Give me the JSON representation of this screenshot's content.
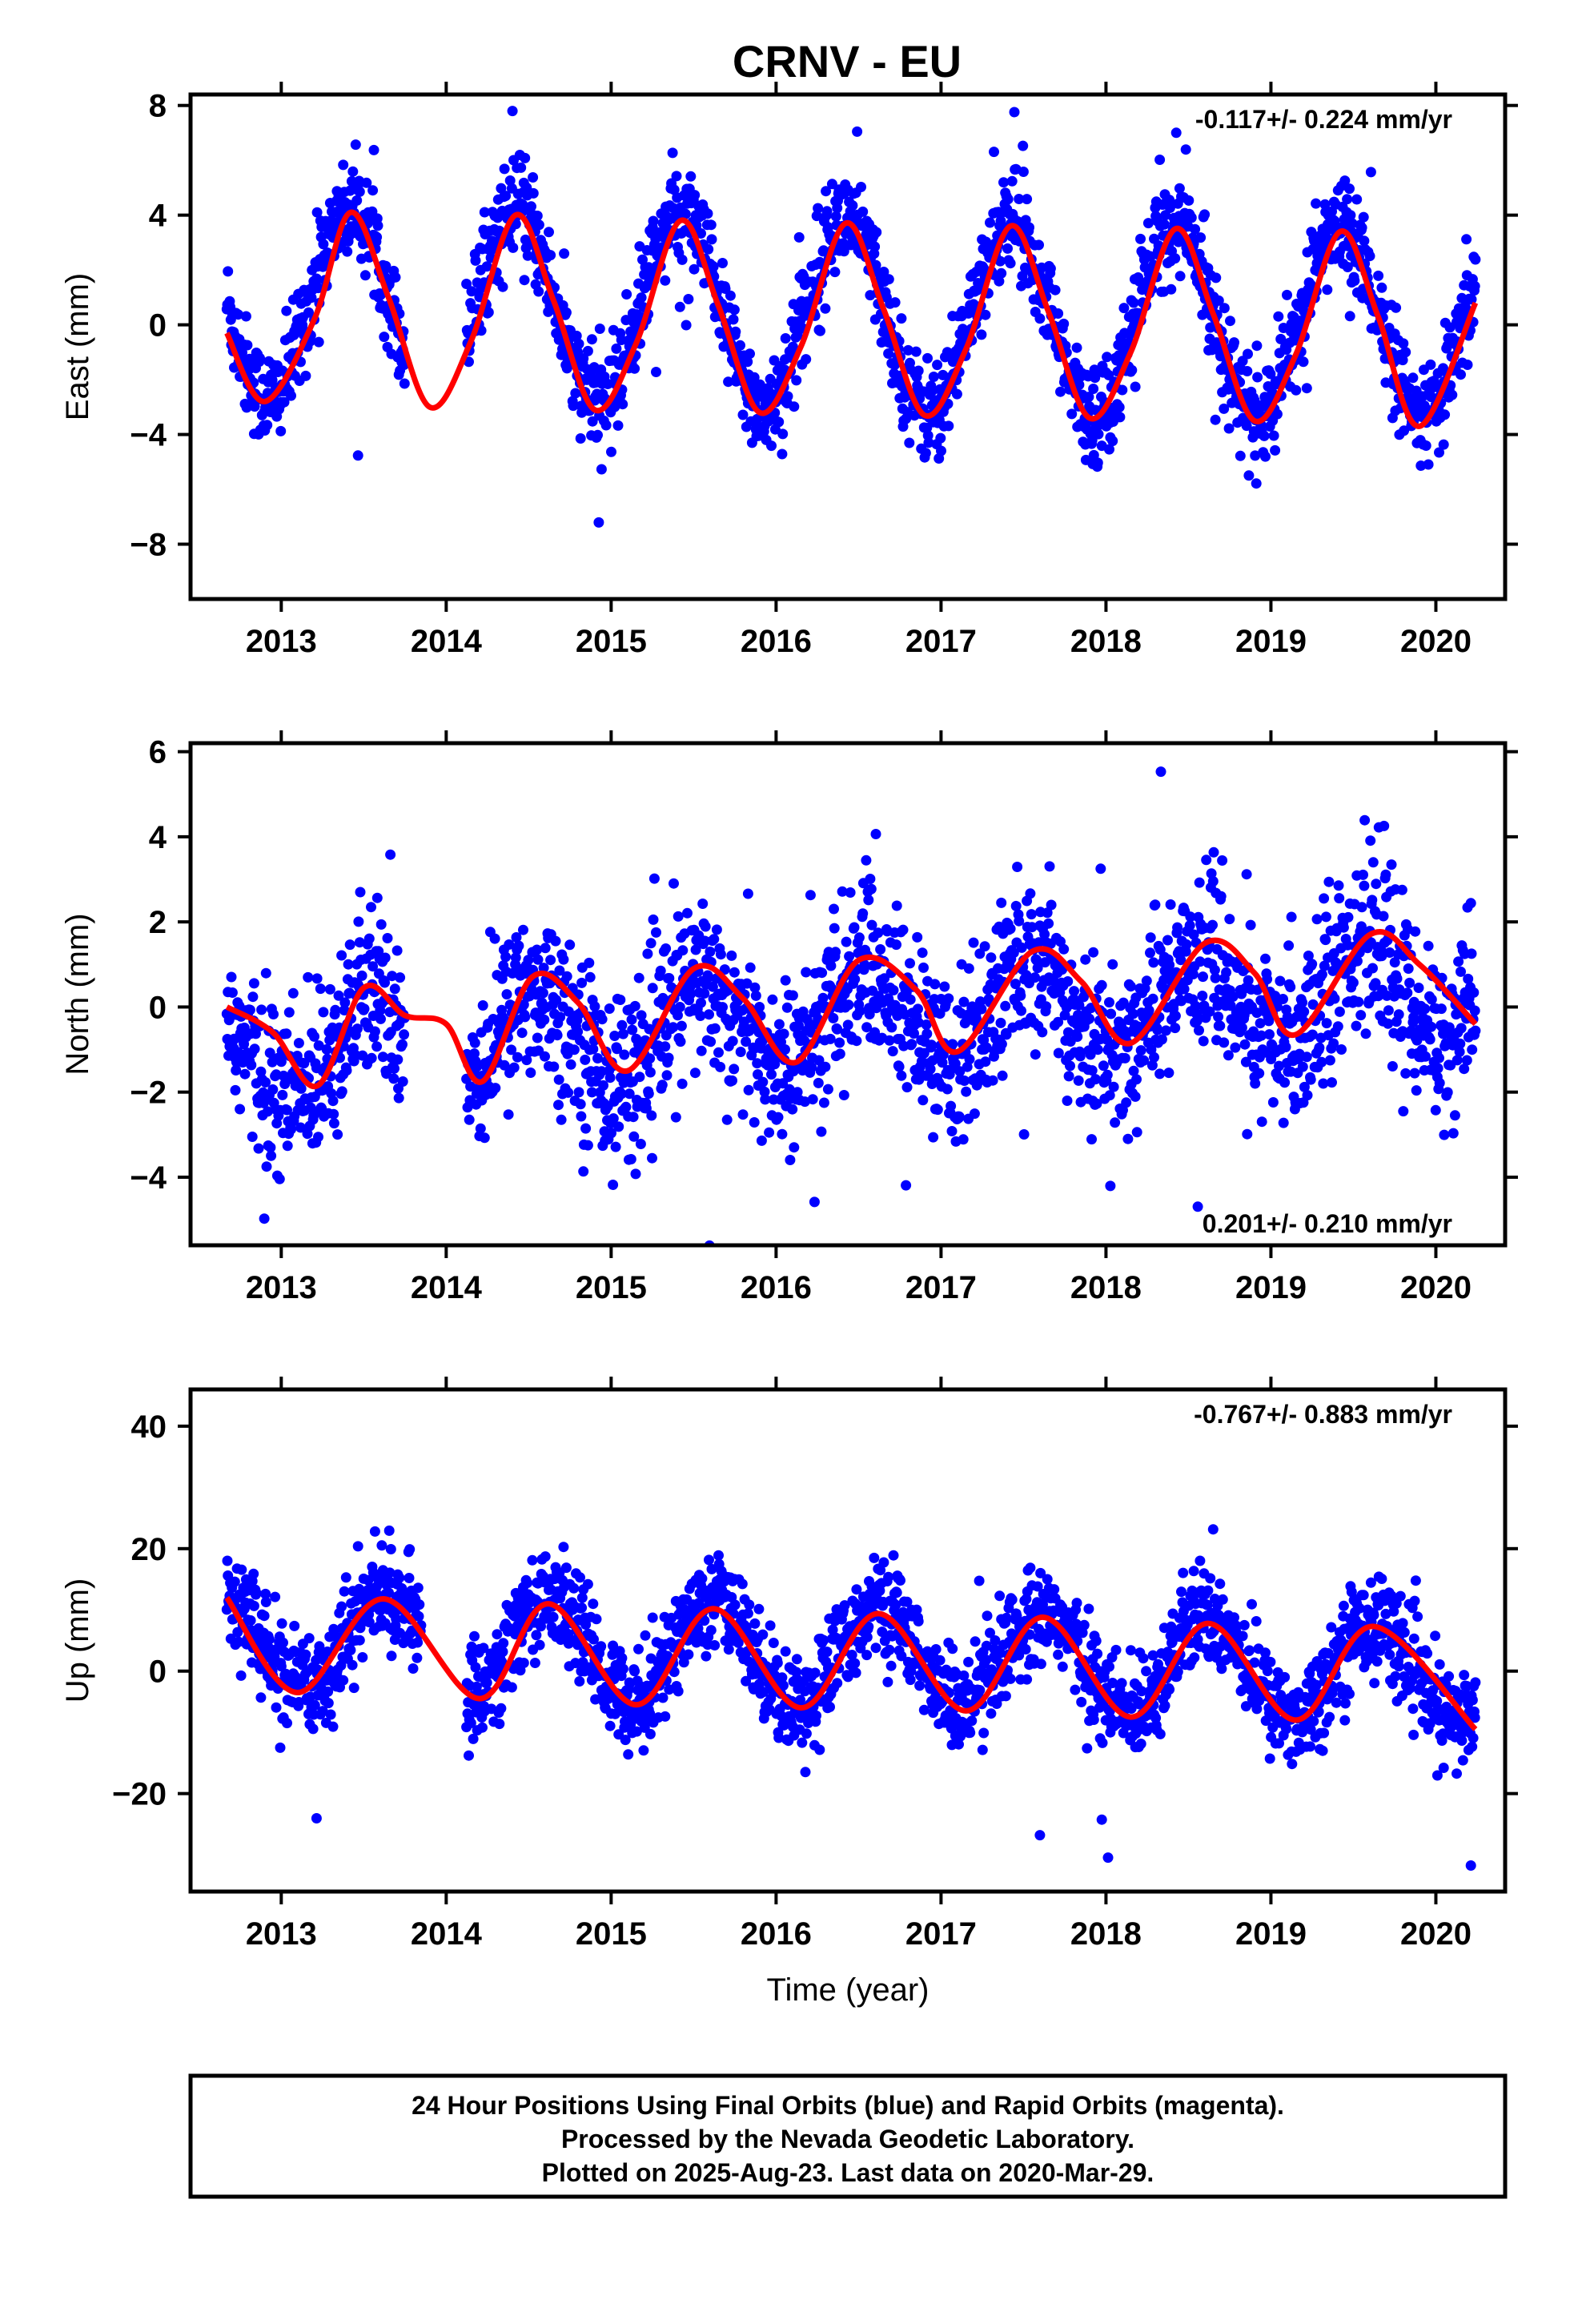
{
  "title": "CRNV - EU",
  "colors": {
    "final_orbits": "#0000ff",
    "fit_curve": "#ff0000",
    "frame": "#000000"
  },
  "footer": {
    "line1": "24 Hour Positions Using Final Orbits (blue) and Rapid Orbits (magenta).",
    "line2": "Processed by the Nevada Geodetic Laboratory.",
    "line3": "Plotted on 2025-Aug-23. Last data on 2020-Mar-29."
  },
  "chart_data": [
    {
      "type": "scatter",
      "ylabel": "East (mm)",
      "xlabel": "",
      "xlim": [
        2012.45,
        2020.42
      ],
      "ylim": [
        -10.0,
        8.4
      ],
      "yticks": [
        -8,
        -4,
        0,
        4,
        8
      ],
      "xticks": [
        2013,
        2014,
        2015,
        2016,
        2017,
        2018,
        2019,
        2020
      ],
      "rate_text": "-0.117+/- 0.224 mm/yr",
      "rate_position": "top-right",
      "data_range": [
        2012.67,
        2020.24
      ],
      "data_gap": [
        2013.75,
        2014.12
      ],
      "series": [
        {
          "role": "daily positions",
          "color": "#0000ff",
          "count": 2200,
          "seasonal": {
            "mean": 0.4,
            "trend": -0.117,
            "amplitude": 3.5,
            "peak_phase": 0.42,
            "noise": 0.9
          }
        },
        {
          "role": "fit",
          "color": "#ff0000",
          "x": [
            2012.67,
            2012.9,
            2013.2,
            2013.42,
            2013.65,
            2013.9,
            2014.15,
            2014.42,
            2014.65,
            2014.9,
            2015.15,
            2015.42,
            2015.65,
            2015.9,
            2016.15,
            2016.42,
            2016.65,
            2016.9,
            2017.15,
            2017.42,
            2017.65,
            2017.9,
            2018.15,
            2018.42,
            2018.65,
            2018.9,
            2019.15,
            2019.42,
            2019.65,
            2019.9,
            2020.24
          ],
          "y": [
            -0.3,
            -2.8,
            0.2,
            4.1,
            1.0,
            -3.0,
            -0.6,
            4.0,
            0.9,
            -3.1,
            -0.7,
            3.8,
            0.7,
            -3.2,
            -0.8,
            3.7,
            0.6,
            -3.3,
            -0.9,
            3.6,
            0.5,
            -3.4,
            -1.0,
            3.5,
            0.4,
            -3.5,
            -1.1,
            3.4,
            0.3,
            -3.7,
            0.8
          ]
        }
      ]
    },
    {
      "type": "scatter",
      "ylabel": "North (mm)",
      "xlabel": "",
      "xlim": [
        2012.45,
        2020.42
      ],
      "ylim": [
        -5.6,
        6.2
      ],
      "yticks": [
        -4,
        -2,
        0,
        2,
        4,
        6
      ],
      "xticks": [
        2013,
        2014,
        2015,
        2016,
        2017,
        2018,
        2019,
        2020
      ],
      "rate_text": "0.201+/- 0.210 mm/yr",
      "rate_position": "bottom-right",
      "data_range": [
        2012.67,
        2020.24
      ],
      "data_gap": [
        2013.75,
        2014.12
      ],
      "series": [
        {
          "role": "daily positions",
          "color": "#0000ff",
          "count": 2200,
          "seasonal": {
            "mean": -0.3,
            "trend": 0.201,
            "amplitude": 1.1,
            "peak_phase": 0.55,
            "noise": 1.0
          }
        },
        {
          "role": "fit",
          "color": "#ff0000",
          "x": [
            2012.67,
            2012.95,
            2013.22,
            2013.5,
            2013.75,
            2014.0,
            2014.22,
            2014.52,
            2014.8,
            2015.1,
            2015.5,
            2015.8,
            2016.12,
            2016.5,
            2016.85,
            2017.1,
            2017.55,
            2017.85,
            2018.15,
            2018.6,
            2018.9,
            2019.15,
            2019.6,
            2019.9,
            2020.24
          ],
          "y": [
            0.0,
            -0.6,
            -1.85,
            0.45,
            -0.2,
            -0.4,
            -1.75,
            0.7,
            0.1,
            -1.5,
            0.9,
            0.2,
            -1.3,
            1.1,
            0.4,
            -1.05,
            1.3,
            0.6,
            -0.85,
            1.5,
            0.8,
            -0.65,
            1.7,
            1.0,
            -0.4
          ]
        }
      ]
    },
    {
      "type": "scatter",
      "ylabel": "Up (mm)",
      "xlabel": "Time (year)",
      "xlim": [
        2012.45,
        2020.42
      ],
      "ylim": [
        -36,
        46
      ],
      "yticks": [
        -20,
        0,
        20,
        40
      ],
      "xticks": [
        2013,
        2014,
        2015,
        2016,
        2017,
        2018,
        2019,
        2020
      ],
      "rate_text": "-0.767+/- 0.883 mm/yr",
      "rate_position": "top-right",
      "data_range": [
        2012.67,
        2020.24
      ],
      "data_gap": [
        2013.85,
        2014.12
      ],
      "series": [
        {
          "role": "daily positions",
          "color": "#0000ff",
          "count": 2200,
          "seasonal": {
            "mean": 2.5,
            "trend": -0.767,
            "amplitude": 8.0,
            "peak_phase": 0.62,
            "noise": 4.0
          }
        },
        {
          "role": "fit",
          "color": "#ff0000",
          "x": [
            2012.67,
            2013.1,
            2013.62,
            2014.2,
            2014.62,
            2015.15,
            2015.62,
            2016.15,
            2016.62,
            2017.15,
            2017.62,
            2018.15,
            2018.62,
            2019.15,
            2019.62,
            2020.24
          ],
          "y": [
            12,
            -3.5,
            11.8,
            -4.5,
            11,
            -5.5,
            10.2,
            -6,
            9.4,
            -6.5,
            8.8,
            -7.5,
            7.8,
            -8,
            7.3,
            -9.5
          ]
        }
      ]
    }
  ]
}
